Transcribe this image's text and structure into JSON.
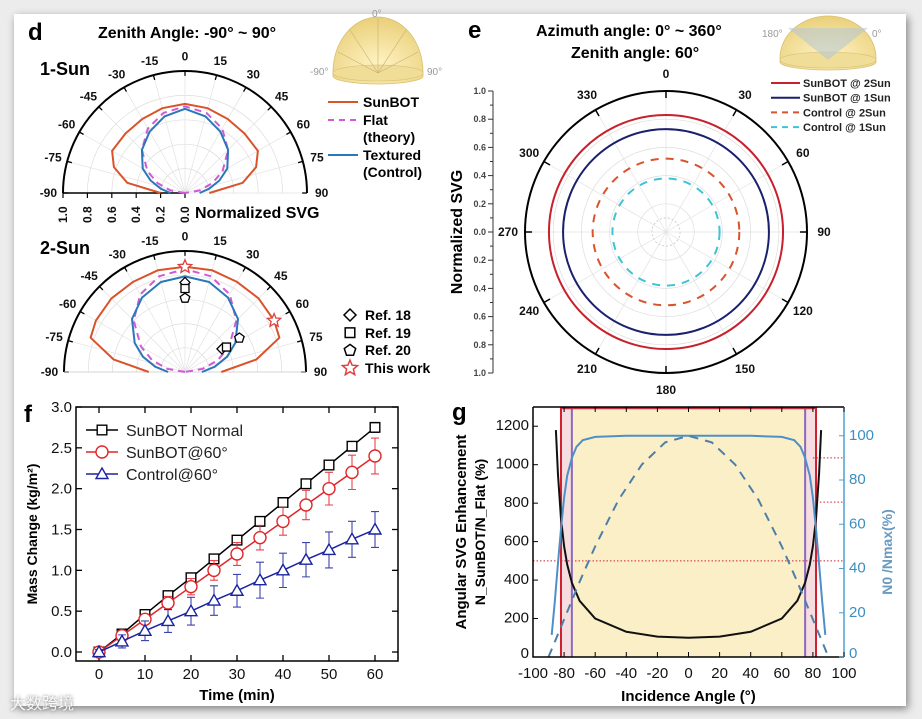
{
  "panels": {
    "d": {
      "label": "d",
      "title": "Zenith Angle: -90° ~ 90°",
      "sub1": "1-Sun",
      "sub2": "2-Sun",
      "inset": {
        "top": "0°",
        "left": "-90°",
        "right": "90°"
      },
      "radial_label": "Normalized SVG",
      "legend1": [
        "SunBOT",
        "Flat",
        "(theory)",
        "Textured",
        "(Control)"
      ],
      "legend2": [
        "Ref. 18",
        "Ref. 19",
        "Ref. 20",
        "This work"
      ]
    },
    "e": {
      "label": "e",
      "title1": "Azimuth angle: 0° ~ 360°",
      "title2": "Zenith angle: 60°",
      "inset": {
        "left": "180°",
        "right": "0°"
      },
      "ylabel": "Normalized  SVG"
    },
    "f": {
      "label": "f"
    },
    "g": {
      "label": "g"
    }
  },
  "watermark": "大数跨境",
  "chart_data": [
    {
      "id": "d-1sun",
      "type": "polar-half",
      "title": "1-Sun",
      "theta_ticks": [
        "-90",
        "-75",
        "-60",
        "-45",
        "-30",
        "-15",
        "0",
        "15",
        "30",
        "45",
        "60",
        "75",
        "90"
      ],
      "r_ticks": [
        "1.0",
        "0.8",
        "0.6",
        "0.4",
        "0.2",
        "0.0"
      ],
      "rlim": [
        0,
        1
      ],
      "theta": [
        -90,
        -80,
        -70,
        -60,
        -45,
        -30,
        -15,
        0,
        15,
        30,
        45,
        60,
        70,
        80,
        90
      ],
      "series": [
        {
          "name": "SunBOT",
          "color": "#d9532b",
          "dash": false,
          "r": [
            0.2,
            0.48,
            0.62,
            0.69,
            0.69,
            0.7,
            0.72,
            0.73,
            0.72,
            0.7,
            0.69,
            0.69,
            0.62,
            0.48,
            0.2
          ]
        },
        {
          "name": "Flat (theory)",
          "color": "#d05ad8",
          "dash": true,
          "r": [
            0.0,
            0.12,
            0.24,
            0.355,
            0.5,
            0.61,
            0.68,
            0.71,
            0.68,
            0.61,
            0.5,
            0.355,
            0.24,
            0.12,
            0.0
          ]
        },
        {
          "name": "Textured (Control)",
          "color": "#2a78b8",
          "dash": false,
          "r": [
            0.12,
            0.2,
            0.3,
            0.4,
            0.5,
            0.58,
            0.65,
            0.69,
            0.65,
            0.58,
            0.5,
            0.4,
            0.3,
            0.2,
            0.12
          ]
        }
      ]
    },
    {
      "id": "d-2sun",
      "type": "polar-half",
      "title": "2-Sun",
      "theta_ticks": [
        "-90",
        "-75",
        "-60",
        "-45",
        "-30",
        "-15",
        "0",
        "15",
        "30",
        "45",
        "60",
        "75",
        "90"
      ],
      "rlim": [
        0,
        1
      ],
      "theta": [
        -90,
        -80,
        -70,
        -60,
        -45,
        -30,
        -15,
        0,
        15,
        30,
        45,
        60,
        70,
        80,
        90
      ],
      "series": [
        {
          "name": "SunBOT",
          "color": "#d9532b",
          "dash": false,
          "r": [
            0.3,
            0.6,
            0.83,
            0.85,
            0.86,
            0.86,
            0.87,
            0.87,
            0.87,
            0.86,
            0.86,
            0.85,
            0.83,
            0.6,
            0.3
          ]
        },
        {
          "name": "Flat (theory)",
          "color": "#d05ad8",
          "dash": true,
          "r": [
            0.0,
            0.15,
            0.29,
            0.42,
            0.6,
            0.74,
            0.82,
            0.85,
            0.82,
            0.74,
            0.6,
            0.42,
            0.29,
            0.15,
            0.0
          ]
        },
        {
          "name": "Textured (Control)",
          "color": "#2a78b8",
          "dash": false,
          "r": [
            0.14,
            0.25,
            0.37,
            0.48,
            0.62,
            0.71,
            0.77,
            0.79,
            0.77,
            0.71,
            0.62,
            0.48,
            0.37,
            0.25,
            0.14
          ]
        }
      ],
      "points": [
        {
          "name": "Ref. 18",
          "marker": "diamond",
          "theta": [
            0,
            58
          ],
          "r": [
            0.74,
            0.36
          ]
        },
        {
          "name": "Ref. 19",
          "marker": "square",
          "theta": [
            0,
            59
          ],
          "r": [
            0.69,
            0.4
          ]
        },
        {
          "name": "Ref. 20",
          "marker": "pentagon",
          "theta": [
            0,
            58
          ],
          "r": [
            0.61,
            0.53
          ]
        },
        {
          "name": "This work",
          "marker": "star",
          "theta": [
            0,
            60
          ],
          "r": [
            0.87,
            0.85
          ]
        }
      ]
    },
    {
      "id": "e",
      "type": "polar",
      "title": "Azimuth angle: 0° ~ 360°, Zenith angle: 60°",
      "theta_ticks": [
        "0",
        "30",
        "60",
        "90",
        "120",
        "150",
        "180",
        "210",
        "240",
        "270",
        "300",
        "330"
      ],
      "r_ticks": [
        "1.0",
        "0.8",
        "0.6",
        "0.4",
        "0.2",
        "0.0",
        "0.2",
        "0.4",
        "0.6",
        "0.8",
        "1.0"
      ],
      "rlim": [
        0,
        1
      ],
      "series": [
        {
          "name": "SunBOT @ 2Sun",
          "color": "#c8202c",
          "dash": false,
          "r": 0.83
        },
        {
          "name": "SunBOT @ 1Sun",
          "color": "#1a1f6e",
          "dash": false,
          "r": 0.73
        },
        {
          "name": "Control @ 2Sun",
          "color": "#d9532b",
          "dash": true,
          "r": 0.52
        },
        {
          "name": "Control @ 1Sun",
          "color": "#3ec3d6",
          "dash": true,
          "r": 0.38
        }
      ]
    },
    {
      "id": "f",
      "type": "line",
      "xlabel": "Time (min)",
      "ylabel": "Mass Change (kg/m²)",
      "xlim": [
        -5,
        65
      ],
      "ylim": [
        -0.11,
        3.0
      ],
      "xticks": [
        "0",
        "10",
        "20",
        "30",
        "40",
        "50",
        "60"
      ],
      "yticks": [
        "0.0",
        "0.5",
        "1.0",
        "1.5",
        "2.0",
        "2.5",
        "3.0"
      ],
      "x": [
        0,
        5,
        10,
        15,
        20,
        25,
        30,
        35,
        40,
        45,
        50,
        55,
        60
      ],
      "series": [
        {
          "name": "SunBOT Normal",
          "color": "#000000",
          "marker": "square",
          "values": [
            0,
            0.22,
            0.46,
            0.69,
            0.91,
            1.14,
            1.37,
            1.6,
            1.83,
            2.06,
            2.29,
            2.52,
            2.75
          ],
          "err": [
            0.02,
            0.02,
            0.02,
            0.03,
            0.03,
            0.03,
            0.04,
            0.04,
            0.04,
            0.05,
            0.05,
            0.05,
            0.06
          ]
        },
        {
          "name": "SunBOT@60°",
          "color": "#e0262b",
          "marker": "circle",
          "values": [
            0,
            0.2,
            0.4,
            0.6,
            0.8,
            1.0,
            1.2,
            1.4,
            1.6,
            1.8,
            2.0,
            2.2,
            2.4
          ],
          "err": [
            0.03,
            0.05,
            0.06,
            0.08,
            0.1,
            0.12,
            0.14,
            0.15,
            0.17,
            0.18,
            0.2,
            0.21,
            0.22
          ]
        },
        {
          "name": "Control@60°",
          "color": "#1a23a0",
          "marker": "triangle",
          "values": [
            0,
            0.13,
            0.26,
            0.38,
            0.5,
            0.63,
            0.75,
            0.88,
            1.0,
            1.13,
            1.25,
            1.38,
            1.5
          ],
          "err": [
            0.03,
            0.08,
            0.12,
            0.14,
            0.17,
            0.18,
            0.2,
            0.22,
            0.21,
            0.21,
            0.22,
            0.22,
            0.22
          ]
        }
      ]
    },
    {
      "id": "g",
      "type": "line",
      "xlabel": "Incidence Angle (°)",
      "ylabel": "Angular SVG Enhancement",
      "ylabel2": "N_SunBOT/N_Flat (%)",
      "y2label": "N0 /Nmax(%)",
      "xlim": [
        -100,
        100
      ],
      "ylim": [
        0,
        1300
      ],
      "y2lim": [
        0,
        113
      ],
      "xticks": [
        "-100",
        "-80",
        "-60",
        "-40",
        "-20",
        "0",
        "20",
        "40",
        "60",
        "80",
        "100"
      ],
      "yticks": [
        "0",
        "200",
        "400",
        "600",
        "800",
        "1000",
        "1200"
      ],
      "y2ticks": [
        "0",
        "20",
        "40",
        "60",
        "80",
        "100"
      ],
      "series": [
        {
          "name": "Enhancement",
          "axis": "left",
          "color": "#111111",
          "dash": false,
          "x": [
            -85.3,
            -84,
            -82,
            -80,
            -78,
            -75,
            -70,
            -60,
            -40,
            -20,
            0,
            20,
            40,
            60,
            70,
            75,
            78,
            80,
            82,
            84,
            85.3
          ],
          "values": [
            1180,
            956,
            718,
            576,
            481,
            386,
            292,
            200,
            131,
            106,
            100,
            106,
            131,
            200,
            292,
            386,
            481,
            576,
            718,
            956,
            1180
          ]
        },
        {
          "name": "N0/Nmax (SunBOT)",
          "axis": "right",
          "color": "#4d90c8",
          "dash": false,
          "x": [
            -88,
            -86,
            -84,
            -82,
            -80,
            -78,
            -75,
            -72,
            -68,
            -60,
            -40,
            0,
            40,
            60,
            68,
            72,
            75,
            78,
            80,
            82,
            84,
            86,
            88
          ],
          "values": [
            10,
            25,
            42,
            58,
            72,
            82,
            90,
            95,
            98,
            99.5,
            100,
            100,
            100,
            99.5,
            98,
            95,
            90,
            82,
            72,
            58,
            42,
            25,
            10
          ]
        },
        {
          "name": "N0/Nmax (Flat)",
          "axis": "right",
          "color": "#4d7fa8",
          "dash": true,
          "x": [
            -90,
            -80,
            -70,
            -60,
            -45,
            -30,
            -15,
            0,
            15,
            30,
            45,
            60,
            70,
            80,
            90
          ],
          "values": [
            0,
            17,
            34,
            50,
            71,
            87,
            97,
            100,
            97,
            87,
            71,
            50,
            34,
            17,
            0
          ]
        }
      ],
      "vlines": [
        {
          "x": -82,
          "color": "#d02030"
        },
        {
          "x": 82,
          "color": "#d02030"
        },
        {
          "x": -75,
          "color": "#8a6ac0"
        },
        {
          "x": 75,
          "color": "#8a6ac0"
        }
      ],
      "hlines": [
        {
          "y": 500,
          "axis": "left",
          "from": -100,
          "to": 100
        },
        {
          "y": 90,
          "axis": "right",
          "from": 80,
          "to": 100
        },
        {
          "y": 70,
          "axis": "right",
          "from": 80,
          "to": 100
        }
      ],
      "shade": {
        "x": [
          -82,
          82
        ],
        "color": "#fbefc8"
      }
    }
  ]
}
